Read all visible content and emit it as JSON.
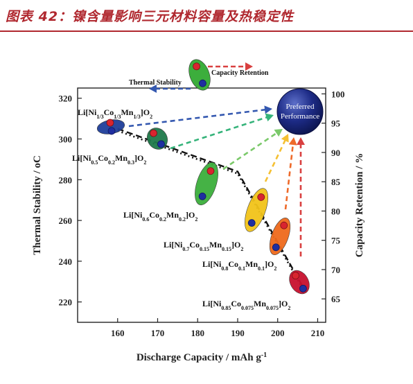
{
  "header": {
    "title": "图表 42：镍含量影响三元材料容量及热稳定性",
    "accent_color": "#b0282f"
  },
  "chart_data": {
    "type": "scatter",
    "title": "",
    "xlabel": "Discharge Capacity / mAh g",
    "xlabel_sup": "-1",
    "ylabel_left": "Thermal Stability / ",
    "ylabel_left_unit": "oC",
    "ylabel_right": "Capacity Retention / %",
    "xlim": [
      150,
      212
    ],
    "ylim_left": [
      210,
      325
    ],
    "ylim_right": [
      61,
      101
    ],
    "xticks": [
      160,
      170,
      180,
      190,
      200,
      210
    ],
    "yticks_left": [
      220,
      240,
      260,
      280,
      300,
      320
    ],
    "yticks_right": [
      65,
      70,
      75,
      80,
      85,
      90,
      95,
      100
    ],
    "legend": {
      "thermal_label": "Thermal Stability",
      "capacity_label": "Capacity Retention",
      "placement": "top-center"
    },
    "target": {
      "line1": "Preferred",
      "line2": "Performance"
    },
    "materials": [
      {
        "name_parts": [
          [
            "Li[Ni",
            ""
          ],
          [
            "1/3",
            "sub"
          ],
          [
            "Co",
            ""
          ],
          [
            "1/3",
            "sub"
          ],
          [
            "Mn",
            ""
          ],
          [
            "1/3",
            "sub"
          ],
          [
            "]O",
            ""
          ],
          [
            "2",
            "sub"
          ]
        ],
        "capacity": 160,
        "thermal_stability": 305,
        "capacity_retention": 95,
        "ellipse_color": "#1f3f9a",
        "arrow_color": "#3458b0"
      },
      {
        "name_parts": [
          [
            "Li[Ni",
            ""
          ],
          [
            "0.5",
            "sub"
          ],
          [
            "Co",
            ""
          ],
          [
            "0.2",
            "sub"
          ],
          [
            "Mn",
            ""
          ],
          [
            "0.3",
            "sub"
          ],
          [
            "]O",
            ""
          ],
          [
            "2",
            "sub"
          ]
        ],
        "capacity": 170,
        "thermal_stability": 296,
        "capacity_retention": 94,
        "ellipse_color": "#1e7a4a",
        "arrow_color": "#35b37a"
      },
      {
        "name_parts": [
          [
            "Li[Ni",
            ""
          ],
          [
            "0.6",
            "sub"
          ],
          [
            "Co",
            ""
          ],
          [
            "0.2",
            "sub"
          ],
          [
            "Mn",
            ""
          ],
          [
            "0.2",
            "sub"
          ],
          [
            "]O",
            ""
          ],
          [
            "2",
            "sub"
          ]
        ],
        "capacity": 184,
        "thermal_stability": 275,
        "capacity_retention": 86,
        "ellipse_color": "#3cae3c",
        "arrow_color": "#7bc96a"
      },
      {
        "name_parts": [
          [
            "Li[Ni",
            ""
          ],
          [
            "0.7",
            "sub"
          ],
          [
            "Co",
            ""
          ],
          [
            "0.15",
            "sub"
          ],
          [
            "Mn",
            ""
          ],
          [
            "0.15",
            "sub"
          ],
          [
            "]O",
            ""
          ],
          [
            "2",
            "sub"
          ]
        ],
        "capacity": 195,
        "thermal_stability": 262,
        "capacity_retention": 82,
        "ellipse_color": "#f2c41a",
        "arrow_color": "#f5c032"
      },
      {
        "name_parts": [
          [
            "Li[Ni",
            ""
          ],
          [
            "0.8",
            "sub"
          ],
          [
            "Co",
            ""
          ],
          [
            "0.1",
            "sub"
          ],
          [
            "Mn",
            ""
          ],
          [
            "0.1",
            "sub"
          ],
          [
            "]O",
            ""
          ],
          [
            "2",
            "sub"
          ]
        ],
        "capacity": 201,
        "thermal_stability": 247,
        "capacity_retention": 77,
        "ellipse_color": "#ef6a1c",
        "arrow_color": "#ee6a2a"
      },
      {
        "name_parts": [
          [
            "Li[Ni",
            ""
          ],
          [
            "0.85",
            "sub"
          ],
          [
            "Co",
            ""
          ],
          [
            "0.075",
            "sub"
          ],
          [
            "Mn",
            ""
          ],
          [
            "0.075",
            "sub"
          ],
          [
            "]O",
            ""
          ],
          [
            "2",
            "sub"
          ]
        ],
        "capacity": 207,
        "thermal_stability": 225,
        "capacity_retention": 68,
        "ellipse_color": "#c8102e",
        "arrow_color": "#d94040"
      }
    ],
    "thermal_trend": {
      "x": [
        160,
        190,
        207
      ],
      "y": [
        305,
        284,
        225
      ]
    },
    "capacity_trend": {
      "x": [
        160,
        190,
        207
      ],
      "y": [
        304,
        283,
        224
      ]
    },
    "grid": false
  }
}
